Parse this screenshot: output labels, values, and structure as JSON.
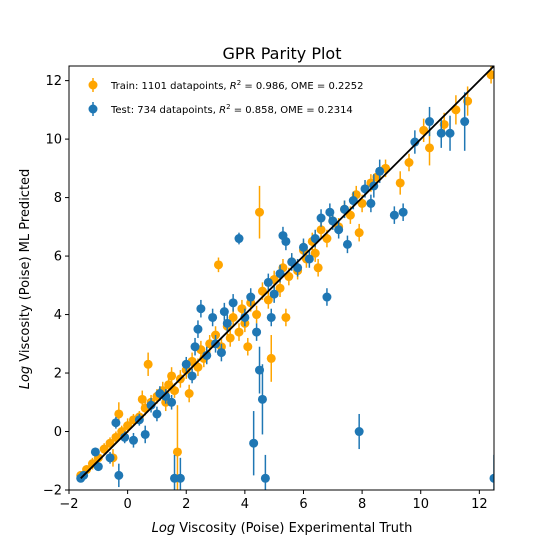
{
  "chart_data": {
    "type": "scatter",
    "title": "GPR Parity Plot",
    "xlabel_prefix": "Log",
    "xlabel_rest": " Viscosity (Poise) Experimental Truth",
    "ylabel_prefix": "Log",
    "ylabel_rest": " Viscosity (Poise) ML Predicted",
    "xlim": [
      -2,
      12.5
    ],
    "ylim": [
      -2,
      12.5
    ],
    "xticks": [
      -2,
      0,
      2,
      4,
      6,
      8,
      10,
      12
    ],
    "yticks": [
      -2,
      0,
      2,
      4,
      6,
      8,
      10,
      12
    ],
    "grid": false,
    "legend_position": "upper-left",
    "parity_line": {
      "x": [
        -1.6,
        12.5
      ],
      "y": [
        -1.6,
        12.5
      ],
      "color": "#000000"
    },
    "legend": {
      "train": {
        "prefix": "Train: 1101 datapoints, ",
        "r2": "R",
        "r2_sup": "2",
        "rest": " = 0.986, OME = 0.2252"
      },
      "test": {
        "prefix": "Test: 734 datapoints, ",
        "r2": "R",
        "r2_sup": "2",
        "rest": " = 0.858, OME = 0.2314"
      }
    },
    "series": [
      {
        "name": "Train",
        "color": "#ffa500",
        "points": [
          [
            -1.6,
            -1.5,
            0.1
          ],
          [
            -1.4,
            -1.3,
            0.1
          ],
          [
            -1.2,
            -1.1,
            0.2
          ],
          [
            -1.0,
            -0.9,
            0.15
          ],
          [
            -0.8,
            -0.6,
            0.2
          ],
          [
            -0.6,
            -0.4,
            0.2
          ],
          [
            -0.5,
            -0.9,
            0.3
          ],
          [
            -0.4,
            -0.2,
            0.2
          ],
          [
            -0.3,
            0.6,
            0.4
          ],
          [
            -0.2,
            0.0,
            0.2
          ],
          [
            0.0,
            0.2,
            0.25
          ],
          [
            0.2,
            0.4,
            0.2
          ],
          [
            0.4,
            0.5,
            0.2
          ],
          [
            0.5,
            1.1,
            0.3
          ],
          [
            0.6,
            0.8,
            0.25
          ],
          [
            0.7,
            2.3,
            0.4
          ],
          [
            0.8,
            1.0,
            0.25
          ],
          [
            1.0,
            1.2,
            0.25
          ],
          [
            1.2,
            1.4,
            0.3
          ],
          [
            1.3,
            1.0,
            0.3
          ],
          [
            1.4,
            1.6,
            0.3
          ],
          [
            1.5,
            1.9,
            0.3
          ],
          [
            1.6,
            1.4,
            0.25
          ],
          [
            1.7,
            -0.7,
            1.6
          ],
          [
            1.8,
            1.8,
            0.3
          ],
          [
            2.0,
            2.1,
            0.3
          ],
          [
            2.2,
            2.4,
            0.3
          ],
          [
            2.4,
            2.2,
            0.3
          ],
          [
            2.5,
            2.8,
            0.3
          ],
          [
            2.6,
            2.5,
            0.3
          ],
          [
            2.8,
            3.0,
            0.3
          ],
          [
            3.0,
            3.3,
            0.3
          ],
          [
            3.1,
            5.7,
            0.25
          ],
          [
            3.2,
            2.9,
            0.3
          ],
          [
            3.4,
            3.6,
            0.3
          ],
          [
            3.5,
            3.2,
            0.3
          ],
          [
            3.6,
            3.9,
            0.3
          ],
          [
            3.8,
            3.4,
            0.3
          ],
          [
            3.9,
            4.2,
            0.3
          ],
          [
            4.0,
            3.7,
            0.3
          ],
          [
            4.2,
            4.4,
            0.3
          ],
          [
            4.4,
            4.0,
            0.3
          ],
          [
            4.5,
            7.5,
            0.9
          ],
          [
            4.6,
            4.8,
            0.3
          ],
          [
            4.8,
            4.5,
            0.3
          ],
          [
            4.9,
            2.5,
            0.8
          ],
          [
            5.0,
            5.2,
            0.3
          ],
          [
            5.2,
            4.9,
            0.3
          ],
          [
            5.3,
            5.6,
            0.3
          ],
          [
            5.4,
            3.9,
            0.3
          ],
          [
            5.5,
            5.3,
            0.3
          ],
          [
            5.6,
            5.8,
            0.3
          ],
          [
            5.8,
            5.5,
            0.3
          ],
          [
            6.0,
            6.2,
            0.3
          ],
          [
            6.1,
            5.9,
            0.3
          ],
          [
            6.3,
            6.5,
            0.3
          ],
          [
            6.4,
            6.1,
            0.3
          ],
          [
            6.6,
            6.9,
            0.3
          ],
          [
            6.8,
            6.6,
            0.3
          ],
          [
            7.0,
            7.2,
            0.3
          ],
          [
            7.2,
            7.0,
            0.3
          ],
          [
            7.4,
            7.6,
            0.3
          ],
          [
            7.6,
            7.4,
            0.3
          ],
          [
            7.8,
            8.1,
            0.3
          ],
          [
            7.9,
            6.8,
            0.3
          ],
          [
            8.0,
            7.8,
            0.3
          ],
          [
            8.3,
            8.5,
            0.3
          ],
          [
            8.5,
            8.7,
            0.3
          ],
          [
            8.8,
            9.0,
            0.3
          ],
          [
            9.3,
            8.5,
            0.4
          ],
          [
            9.6,
            9.2,
            0.3
          ],
          [
            10.1,
            10.3,
            0.4
          ],
          [
            10.3,
            9.7,
            0.6
          ],
          [
            10.8,
            10.5,
            0.4
          ],
          [
            11.2,
            11.0,
            0.5
          ],
          [
            11.6,
            11.3,
            0.5
          ],
          [
            12.4,
            12.2,
            0.3
          ],
          [
            2.1,
            1.3,
            0.3
          ],
          [
            4.1,
            2.9,
            0.3
          ],
          [
            6.5,
            5.6,
            0.3
          ]
        ]
      },
      {
        "name": "Test",
        "color": "#1f77b4",
        "points": [
          [
            -1.6,
            -1.6,
            0.1
          ],
          [
            -1.5,
            -1.5,
            0.1
          ],
          [
            -1.1,
            -0.7,
            0.15
          ],
          [
            -1.0,
            -1.2,
            0.15
          ],
          [
            -0.6,
            -0.9,
            0.2
          ],
          [
            -0.4,
            0.3,
            0.2
          ],
          [
            -0.3,
            -1.5,
            0.4
          ],
          [
            -0.1,
            -0.2,
            0.2
          ],
          [
            0.2,
            -0.3,
            0.25
          ],
          [
            0.4,
            0.4,
            0.2
          ],
          [
            0.6,
            -0.1,
            0.3
          ],
          [
            0.8,
            0.9,
            0.25
          ],
          [
            1.0,
            0.6,
            0.25
          ],
          [
            1.1,
            1.3,
            0.25
          ],
          [
            1.3,
            1.2,
            0.25
          ],
          [
            1.6,
            -1.6,
            0.8
          ],
          [
            1.8,
            -1.6,
            0.7
          ],
          [
            2.0,
            2.3,
            0.25
          ],
          [
            2.2,
            1.9,
            0.25
          ],
          [
            2.4,
            3.5,
            0.3
          ],
          [
            2.5,
            4.2,
            0.3
          ],
          [
            2.7,
            2.6,
            0.3
          ],
          [
            2.9,
            3.9,
            0.3
          ],
          [
            3.0,
            3.0,
            0.3
          ],
          [
            3.2,
            2.7,
            0.3
          ],
          [
            3.4,
            3.7,
            0.3
          ],
          [
            3.6,
            4.4,
            0.3
          ],
          [
            3.8,
            6.6,
            0.2
          ],
          [
            4.0,
            3.9,
            0.3
          ],
          [
            4.2,
            4.6,
            0.3
          ],
          [
            4.3,
            -0.4,
            1.1
          ],
          [
            4.4,
            3.4,
            0.3
          ],
          [
            4.5,
            2.1,
            0.8
          ],
          [
            4.6,
            1.1,
            1.2
          ],
          [
            4.7,
            -1.6,
            0.8
          ],
          [
            4.8,
            5.1,
            0.3
          ],
          [
            5.0,
            4.7,
            0.3
          ],
          [
            5.2,
            5.4,
            0.3
          ],
          [
            5.4,
            6.5,
            0.3
          ],
          [
            5.6,
            5.8,
            0.3
          ],
          [
            5.8,
            5.6,
            0.3
          ],
          [
            6.0,
            6.3,
            0.3
          ],
          [
            6.2,
            5.9,
            0.3
          ],
          [
            6.4,
            6.6,
            0.3
          ],
          [
            6.6,
            7.3,
            0.3
          ],
          [
            6.8,
            4.6,
            0.3
          ],
          [
            7.0,
            7.2,
            0.3
          ],
          [
            7.2,
            6.9,
            0.3
          ],
          [
            7.4,
            7.6,
            0.3
          ],
          [
            7.5,
            6.4,
            0.3
          ],
          [
            7.7,
            7.9,
            0.3
          ],
          [
            7.9,
            0.0,
            0.6
          ],
          [
            8.1,
            8.3,
            0.3
          ],
          [
            8.3,
            7.8,
            0.3
          ],
          [
            8.6,
            8.9,
            0.4
          ],
          [
            9.1,
            7.4,
            0.3
          ],
          [
            9.4,
            7.5,
            0.3
          ],
          [
            9.8,
            9.9,
            0.4
          ],
          [
            10.3,
            10.6,
            0.5
          ],
          [
            10.7,
            10.2,
            0.5
          ],
          [
            11.0,
            10.2,
            0.6
          ],
          [
            11.5,
            10.6,
            1.0
          ],
          [
            12.5,
            -1.6,
            0.8
          ],
          [
            1.5,
            1.0,
            0.25
          ],
          [
            3.3,
            4.1,
            0.3
          ],
          [
            5.3,
            6.7,
            0.3
          ],
          [
            6.9,
            7.5,
            0.3
          ],
          [
            2.3,
            2.9,
            0.3
          ],
          [
            4.9,
            3.9,
            0.3
          ],
          [
            8.4,
            8.4,
            0.4
          ]
        ]
      }
    ]
  }
}
